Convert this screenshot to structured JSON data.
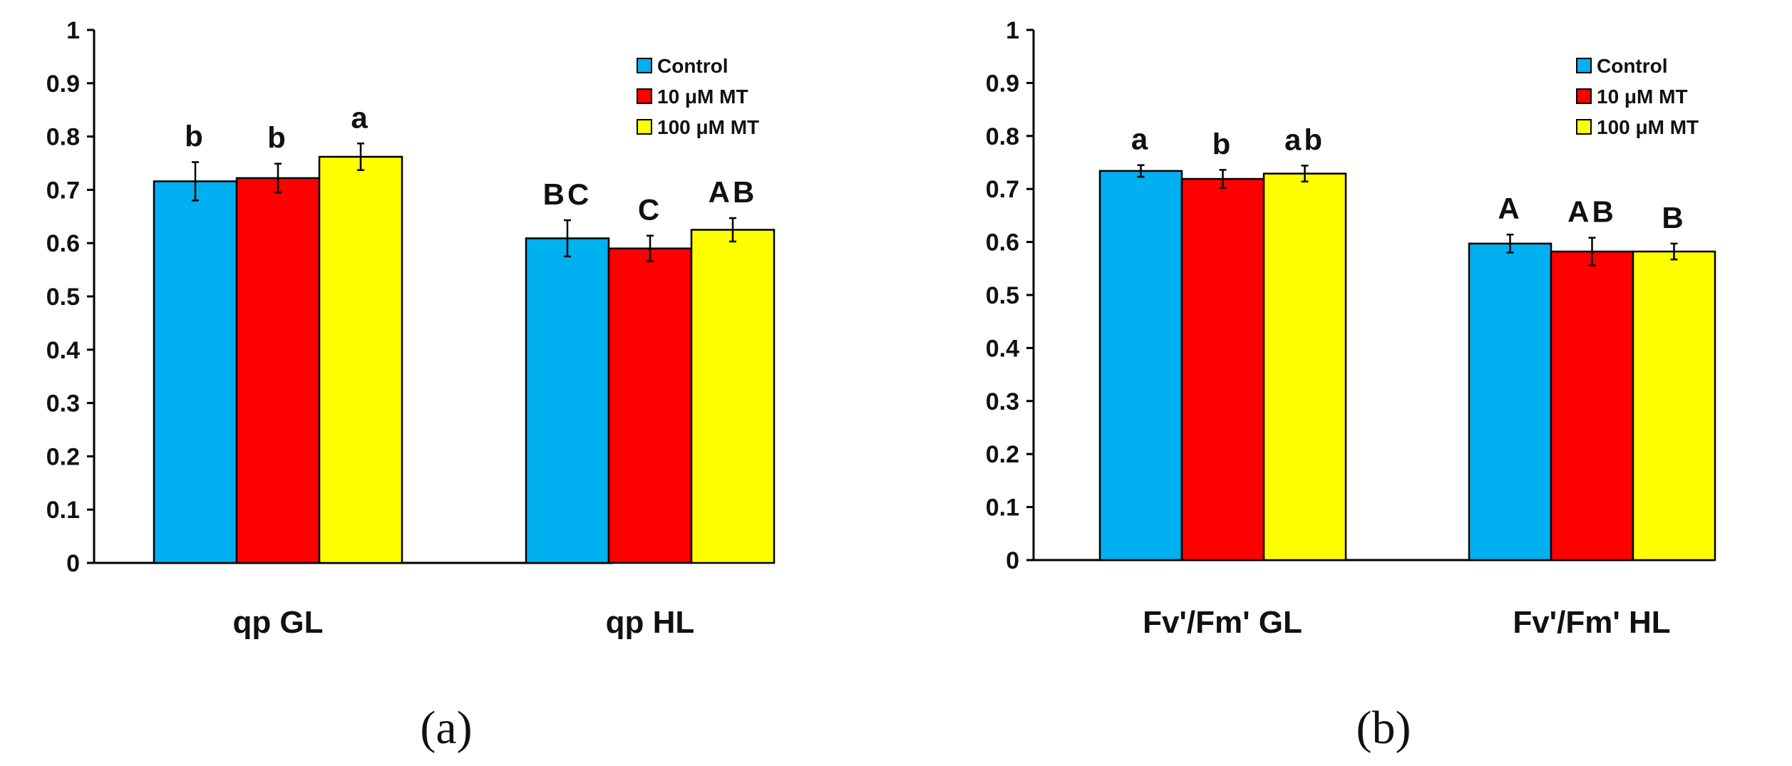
{
  "colors": {
    "control": "#00B0F0",
    "mt10": "#FF0000",
    "mt100": "#FFFF00"
  },
  "chart_data": [
    {
      "type": "bar",
      "panel_label": "(a)",
      "categories": [
        "qp GL",
        "qp HL"
      ],
      "ylim": [
        0,
        1
      ],
      "yticks": [
        "0",
        "0.1",
        "0.2",
        "0.3",
        "0.4",
        "0.5",
        "0.6",
        "0.7",
        "0.8",
        "0.9",
        "1"
      ],
      "legend_position": "top-right",
      "series": [
        {
          "name": "Control",
          "color_key": "control",
          "values": [
            0.716,
            0.609
          ],
          "errors": [
            0.036,
            0.034
          ],
          "letters": [
            "b",
            "BC"
          ]
        },
        {
          "name": "10 μM MT",
          "color_key": "mt10",
          "values": [
            0.722,
            0.59
          ],
          "errors": [
            0.027,
            0.024
          ],
          "letters": [
            "b",
            "C"
          ]
        },
        {
          "name": "100 μM MT",
          "color_key": "mt100",
          "values": [
            0.762,
            0.625
          ],
          "errors": [
            0.025,
            0.022
          ],
          "letters": [
            "a",
            "AB"
          ]
        }
      ]
    },
    {
      "type": "bar",
      "panel_label": "(b)",
      "categories": [
        "Fv'/Fm' GL",
        "Fv'/Fm' HL"
      ],
      "ylim": [
        0,
        1
      ],
      "yticks": [
        "0",
        "0.1",
        "0.2",
        "0.3",
        "0.4",
        "0.5",
        "0.6",
        "0.7",
        "0.8",
        "0.9",
        "1"
      ],
      "legend_position": "top-right",
      "series": [
        {
          "name": "Control",
          "color_key": "control",
          "values": [
            0.734,
            0.597
          ],
          "errors": [
            0.011,
            0.017
          ],
          "letters": [
            "a",
            "A"
          ]
        },
        {
          "name": "10 μM MT",
          "color_key": "mt10",
          "values": [
            0.719,
            0.582
          ],
          "errors": [
            0.017,
            0.026
          ],
          "letters": [
            "b",
            "AB"
          ]
        },
        {
          "name": "100 μM MT",
          "color_key": "mt100",
          "values": [
            0.729,
            0.582
          ],
          "errors": [
            0.015,
            0.015
          ],
          "letters": [
            "ab",
            "B"
          ]
        }
      ]
    }
  ]
}
